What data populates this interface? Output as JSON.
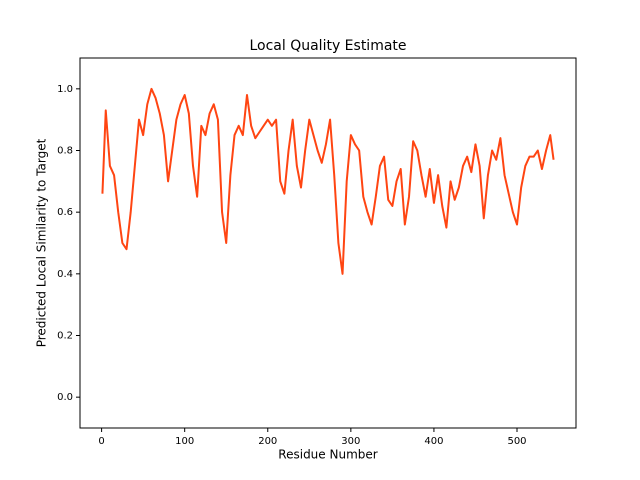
{
  "chart_data": {
    "type": "line",
    "title": "Local Quality Estimate",
    "x_label": "Residue Number",
    "y_label": "Predicted Local Similarity to Target",
    "x": [
      1,
      5,
      10,
      15,
      20,
      25,
      30,
      35,
      40,
      45,
      50,
      55,
      60,
      65,
      70,
      75,
      80,
      85,
      90,
      95,
      100,
      105,
      110,
      115,
      120,
      125,
      130,
      135,
      140,
      145,
      150,
      155,
      160,
      165,
      170,
      175,
      180,
      185,
      190,
      195,
      200,
      205,
      210,
      215,
      220,
      225,
      230,
      235,
      240,
      245,
      250,
      255,
      260,
      265,
      270,
      275,
      280,
      285,
      290,
      295,
      300,
      305,
      310,
      315,
      320,
      325,
      330,
      335,
      340,
      345,
      350,
      355,
      360,
      365,
      370,
      375,
      380,
      385,
      390,
      395,
      400,
      405,
      410,
      415,
      420,
      425,
      430,
      435,
      440,
      445,
      450,
      455,
      460,
      465,
      470,
      475,
      480,
      485,
      490,
      495,
      500,
      505,
      510,
      515,
      520,
      525,
      530,
      535,
      540,
      544
    ],
    "series": [
      {
        "color": "#ff4512",
        "values": [
          0.66,
          0.93,
          0.75,
          0.72,
          0.6,
          0.5,
          0.48,
          0.6,
          0.75,
          0.9,
          0.85,
          0.95,
          1.0,
          0.97,
          0.92,
          0.85,
          0.7,
          0.8,
          0.9,
          0.95,
          0.98,
          0.92,
          0.75,
          0.65,
          0.88,
          0.85,
          0.92,
          0.95,
          0.9,
          0.6,
          0.5,
          0.72,
          0.85,
          0.88,
          0.85,
          0.98,
          0.88,
          0.84,
          0.86,
          0.88,
          0.9,
          0.88,
          0.9,
          0.7,
          0.66,
          0.8,
          0.9,
          0.75,
          0.68,
          0.8,
          0.9,
          0.85,
          0.8,
          0.76,
          0.82,
          0.9,
          0.72,
          0.5,
          0.4,
          0.7,
          0.85,
          0.82,
          0.8,
          0.65,
          0.6,
          0.56,
          0.65,
          0.75,
          0.78,
          0.64,
          0.62,
          0.7,
          0.74,
          0.56,
          0.65,
          0.83,
          0.8,
          0.72,
          0.65,
          0.74,
          0.63,
          0.72,
          0.62,
          0.55,
          0.7,
          0.64,
          0.68,
          0.75,
          0.78,
          0.73,
          0.82,
          0.75,
          0.58,
          0.72,
          0.8,
          0.77,
          0.84,
          0.72,
          0.66,
          0.6,
          0.56,
          0.68,
          0.75,
          0.78,
          0.78,
          0.8,
          0.74,
          0.8,
          0.85,
          0.77
        ]
      }
    ],
    "xlim": [
      -26,
      571
    ],
    "ylim": [
      -0.1,
      1.1
    ],
    "xticks": [
      0,
      100,
      200,
      300,
      400,
      500
    ],
    "yticks": [
      {
        "value": 0,
        "label": "0.0"
      },
      0.2,
      0.4,
      0.6,
      0.8,
      {
        "value": 1,
        "label": "1.0"
      }
    ]
  }
}
